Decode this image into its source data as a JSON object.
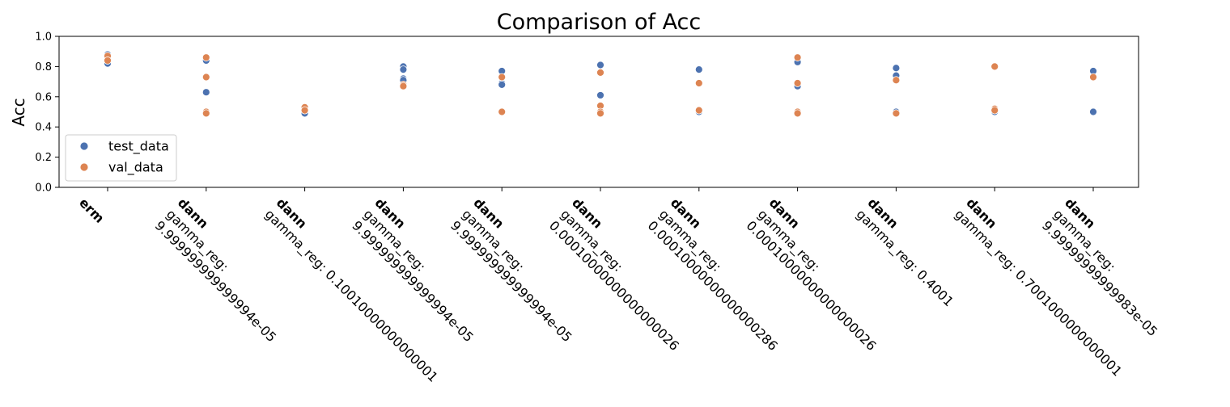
{
  "chart_data": {
    "type": "scatter",
    "title": "Comparison of Acc",
    "xlabel": "",
    "ylabel": "Acc",
    "ylim": [
      0.0,
      1.0
    ],
    "yticks": [
      0.0,
      0.2,
      0.4,
      0.6,
      0.8,
      1.0
    ],
    "ytick_labels": [
      "0.0",
      "0.2",
      "0.4",
      "0.6",
      "0.8",
      "1.0"
    ],
    "grid": false,
    "legend_position": "bottom-left",
    "categories": [
      {
        "method": "erm",
        "param": ""
      },
      {
        "method": "dann",
        "param": "gamma_reg:\n9.999999999999994e-05"
      },
      {
        "method": "dann",
        "param": "gamma_reg: 0.10010000000000001"
      },
      {
        "method": "dann",
        "param": "gamma_reg:\n9.999999999999994e-05"
      },
      {
        "method": "dann",
        "param": "gamma_reg:\n9.999999999999994e-05"
      },
      {
        "method": "dann",
        "param": "gamma_reg:\n0.00010000000000000026"
      },
      {
        "method": "dann",
        "param": "gamma_reg:\n0.00010000000000000286"
      },
      {
        "method": "dann",
        "param": "gamma_reg:\n0.00010000000000000026"
      },
      {
        "method": "dann",
        "param": "gamma_reg: 0.4001"
      },
      {
        "method": "dann",
        "param": "gamma_reg: 0.7001000000000001"
      },
      {
        "method": "dann",
        "param": "gamma_reg:\n9.99999999999983e-05"
      }
    ],
    "series": [
      {
        "name": "test_data",
        "color": "#4c72b0",
        "points": [
          [
            0,
            0.88
          ],
          [
            0,
            0.87
          ],
          [
            0,
            0.84
          ],
          [
            0,
            0.82
          ],
          [
            1,
            0.85
          ],
          [
            1,
            0.84
          ],
          [
            1,
            0.63
          ],
          [
            1,
            0.5
          ],
          [
            2,
            0.52
          ],
          [
            2,
            0.5
          ],
          [
            2,
            0.49
          ],
          [
            3,
            0.8
          ],
          [
            3,
            0.78
          ],
          [
            3,
            0.72
          ],
          [
            3,
            0.71
          ],
          [
            4,
            0.77
          ],
          [
            4,
            0.69
          ],
          [
            4,
            0.68
          ],
          [
            4,
            0.5
          ],
          [
            5,
            0.81
          ],
          [
            5,
            0.61
          ],
          [
            5,
            0.5
          ],
          [
            6,
            0.78
          ],
          [
            6,
            0.5
          ],
          [
            6,
            0.5
          ],
          [
            7,
            0.84
          ],
          [
            7,
            0.83
          ],
          [
            7,
            0.68
          ],
          [
            7,
            0.67
          ],
          [
            7,
            0.5
          ],
          [
            8,
            0.79
          ],
          [
            8,
            0.74
          ],
          [
            8,
            0.5
          ],
          [
            8,
            0.49
          ],
          [
            9,
            0.5
          ],
          [
            9,
            0.5
          ],
          [
            10,
            0.77
          ],
          [
            10,
            0.5
          ],
          [
            10,
            0.5
          ]
        ]
      },
      {
        "name": "val_data",
        "color": "#dd8452",
        "points": [
          [
            0,
            0.87
          ],
          [
            0,
            0.84
          ],
          [
            1,
            0.86
          ],
          [
            1,
            0.73
          ],
          [
            1,
            0.5
          ],
          [
            1,
            0.49
          ],
          [
            2,
            0.53
          ],
          [
            2,
            0.51
          ],
          [
            3,
            0.68
          ],
          [
            3,
            0.67
          ],
          [
            4,
            0.73
          ],
          [
            4,
            0.5
          ],
          [
            5,
            0.76
          ],
          [
            5,
            0.54
          ],
          [
            5,
            0.5
          ],
          [
            5,
            0.49
          ],
          [
            6,
            0.69
          ],
          [
            6,
            0.51
          ],
          [
            7,
            0.86
          ],
          [
            7,
            0.69
          ],
          [
            7,
            0.5
          ],
          [
            7,
            0.49
          ],
          [
            8,
            0.71
          ],
          [
            8,
            0.49
          ],
          [
            9,
            0.8
          ],
          [
            9,
            0.52
          ],
          [
            9,
            0.51
          ],
          [
            10,
            0.73
          ]
        ]
      }
    ]
  }
}
